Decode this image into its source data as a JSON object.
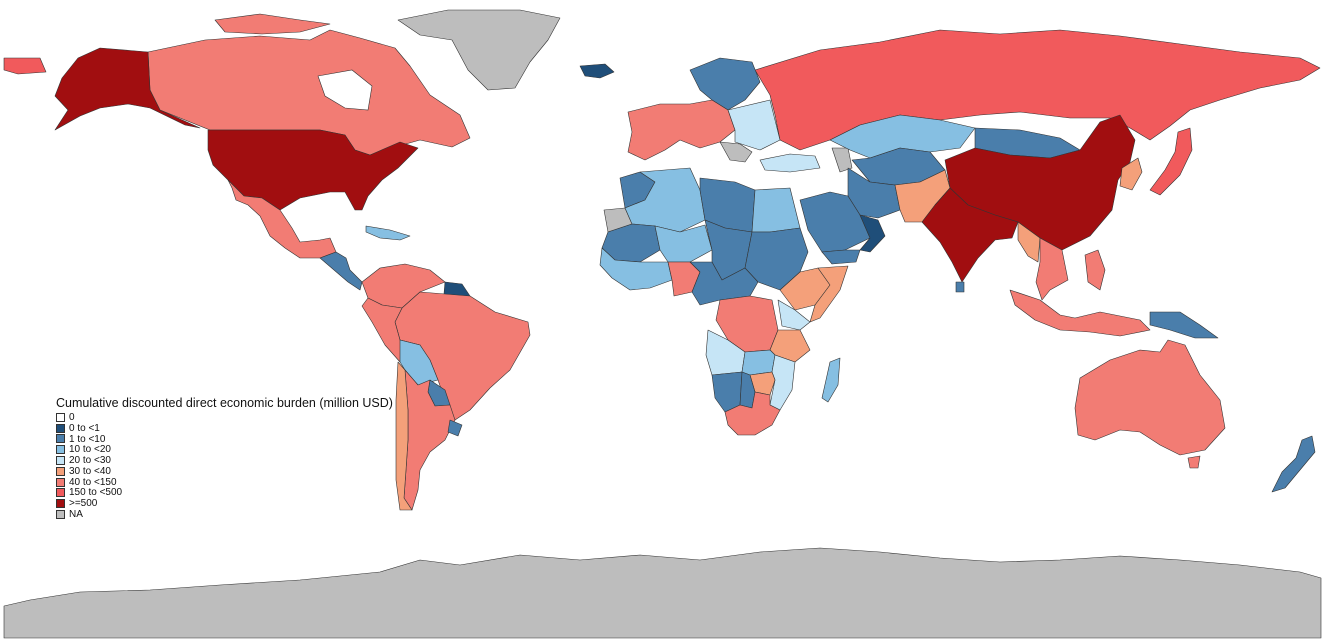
{
  "legend": {
    "title": "Cumulative discounted direct economic burden (million USD)",
    "items": [
      {
        "label": "0",
        "color": "#ffffff"
      },
      {
        "label": "0 to <1",
        "color": "#1f4e79"
      },
      {
        "label": "1 to <10",
        "color": "#4a7eab"
      },
      {
        "label": "10 to <20",
        "color": "#86bfe2"
      },
      {
        "label": "20 to <30",
        "color": "#c6e5f6"
      },
      {
        "label": "30 to <40",
        "color": "#f4a07a"
      },
      {
        "label": "40 to <150",
        "color": "#f27c74"
      },
      {
        "label": "150 to <500",
        "color": "#f15a5c"
      },
      {
        "label": ">=500",
        "color": "#a10e10"
      },
      {
        "label": "NA",
        "color": "#bdbdbd"
      }
    ]
  },
  "countries": [
    {
      "name": "Canada",
      "category": "40 to <150"
    },
    {
      "name": "Alaska (USA)",
      "category": ">=500"
    },
    {
      "name": "United States",
      "category": ">=500"
    },
    {
      "name": "Greenland",
      "category": "NA"
    },
    {
      "name": "Mexico",
      "category": "40 to <150"
    },
    {
      "name": "Central America",
      "category": "1 to <10"
    },
    {
      "name": "Caribbean",
      "category": "10 to <20"
    },
    {
      "name": "Brazil",
      "category": "40 to <150"
    },
    {
      "name": "Colombia",
      "category": "40 to <150"
    },
    {
      "name": "Venezuela",
      "category": "40 to <150"
    },
    {
      "name": "Guyana",
      "category": "0 to <1"
    },
    {
      "name": "Peru",
      "category": "40 to <150"
    },
    {
      "name": "Bolivia",
      "category": "10 to <20"
    },
    {
      "name": "Paraguay",
      "category": "1 to <10"
    },
    {
      "name": "Argentina",
      "category": "40 to <150"
    },
    {
      "name": "Chile",
      "category": "30 to <40"
    },
    {
      "name": "Uruguay",
      "category": "1 to <10"
    },
    {
      "name": "Russia",
      "category": "150 to <500"
    },
    {
      "name": "Scandinavia",
      "category": "1 to <10"
    },
    {
      "name": "Western Europe",
      "category": "40 to <150"
    },
    {
      "name": "Eastern Europe",
      "category": "20 to <30"
    },
    {
      "name": "Turkey",
      "category": "20 to <30"
    },
    {
      "name": "Kazakhstan",
      "category": "10 to <20"
    },
    {
      "name": "Mongolia",
      "category": "1 to <10"
    },
    {
      "name": "China",
      "category": ">=500"
    },
    {
      "name": "India",
      "category": ">=500"
    },
    {
      "name": "Pakistan",
      "category": "30 to <40"
    },
    {
      "name": "Iran",
      "category": "1 to <10"
    },
    {
      "name": "Saudi Arabia",
      "category": "1 to <10"
    },
    {
      "name": "Yemen",
      "category": "1 to <10"
    },
    {
      "name": "Oman",
      "category": "0 to <1"
    },
    {
      "name": "Central Asia",
      "category": "1 to <10"
    },
    {
      "name": "Myanmar",
      "category": "30 to <40"
    },
    {
      "name": "Southeast Asia",
      "category": "40 to <150"
    },
    {
      "name": "Japan",
      "category": "150 to <500"
    },
    {
      "name": "Korea",
      "category": "30 to <40"
    },
    {
      "name": "Philippines",
      "category": "40 to <150"
    },
    {
      "name": "Indonesia",
      "category": "40 to <150"
    },
    {
      "name": "Papua New Guinea",
      "category": "1 to <10"
    },
    {
      "name": "Australia",
      "category": "40 to <150"
    },
    {
      "name": "New Zealand",
      "category": "1 to <10"
    },
    {
      "name": "Sri Lanka",
      "category": "1 to <10"
    },
    {
      "name": "Iceland",
      "category": "0 to <1"
    },
    {
      "name": "Western Sahara",
      "category": "NA"
    },
    {
      "name": "Morocco",
      "category": "1 to <10"
    },
    {
      "name": "Algeria",
      "category": "10 to <20"
    },
    {
      "name": "Libya",
      "category": "1 to <10"
    },
    {
      "name": "Egypt",
      "category": "10 to <20"
    },
    {
      "name": "Mali",
      "category": "1 to <10"
    },
    {
      "name": "Niger",
      "category": "10 to <20"
    },
    {
      "name": "Chad",
      "category": "1 to <10"
    },
    {
      "name": "Sudan",
      "category": "1 to <10"
    },
    {
      "name": "Nigeria",
      "category": "40 to <150"
    },
    {
      "name": "West Africa",
      "category": "10 to <20"
    },
    {
      "name": "Ethiopia",
      "category": "30 to <40"
    },
    {
      "name": "Somalia",
      "category": "30 to <40"
    },
    {
      "name": "Central Africa",
      "category": "1 to <10"
    },
    {
      "name": "DR Congo",
      "category": "40 to <150"
    },
    {
      "name": "Kenya",
      "category": "20 to <30"
    },
    {
      "name": "Tanzania",
      "category": "30 to <40"
    },
    {
      "name": "Angola",
      "category": "20 to <30"
    },
    {
      "name": "Zambia",
      "category": "10 to <20"
    },
    {
      "name": "Mozambique",
      "category": "20 to <30"
    },
    {
      "name": "Namibia",
      "category": "1 to <10"
    },
    {
      "name": "Botswana",
      "category": "1 to <10"
    },
    {
      "name": "Zimbabwe",
      "category": "30 to <40"
    },
    {
      "name": "South Africa",
      "category": "40 to <150"
    },
    {
      "name": "Madagascar",
      "category": "10 to <20"
    },
    {
      "name": "Caucasus",
      "category": "NA"
    },
    {
      "name": "Balkans",
      "category": "NA"
    },
    {
      "name": "Antarctica",
      "category": "NA"
    }
  ]
}
